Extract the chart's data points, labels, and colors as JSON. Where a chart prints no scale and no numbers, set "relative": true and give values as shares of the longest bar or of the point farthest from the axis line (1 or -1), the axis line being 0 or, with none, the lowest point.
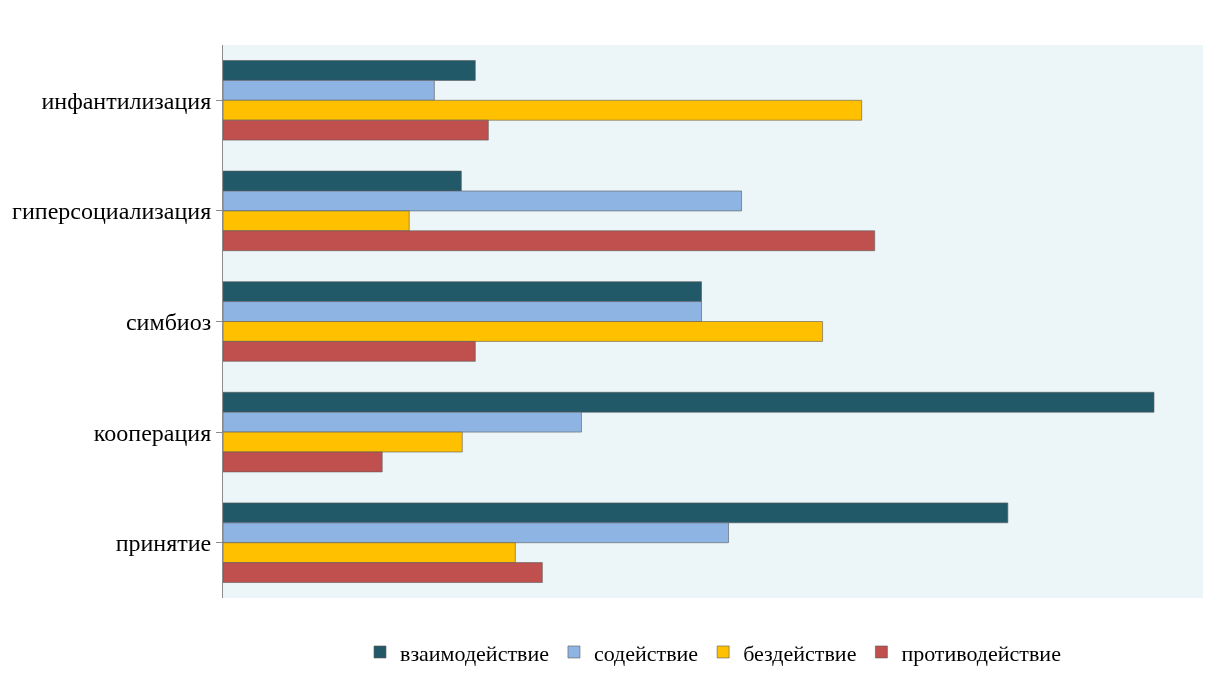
{
  "chart_data": {
    "type": "bar",
    "orientation": "horizontal",
    "relative": true,
    "legend": "bottom",
    "categories": [
      "инфантилизация",
      "гиперсоциализация",
      "симбиоз",
      "кооперация",
      "принятие"
    ],
    "series": [
      {
        "name": "взаимодействие",
        "color": "#215968",
        "values": [
          0.271,
          0.256,
          0.514,
          1,
          0.843
        ]
      },
      {
        "name": "содействие",
        "color": "#8eb4e3",
        "values": [
          0.227,
          0.557,
          0.514,
          0.385,
          0.543
        ]
      },
      {
        "name": "бездействие",
        "color": "#ffc000",
        "values": [
          0.686,
          0.2,
          0.644,
          0.257,
          0.314
        ]
      },
      {
        "name": "противодействие",
        "color": "#c0504d",
        "values": [
          0.285,
          0.7,
          0.271,
          0.171,
          0.343
        ]
      }
    ]
  }
}
